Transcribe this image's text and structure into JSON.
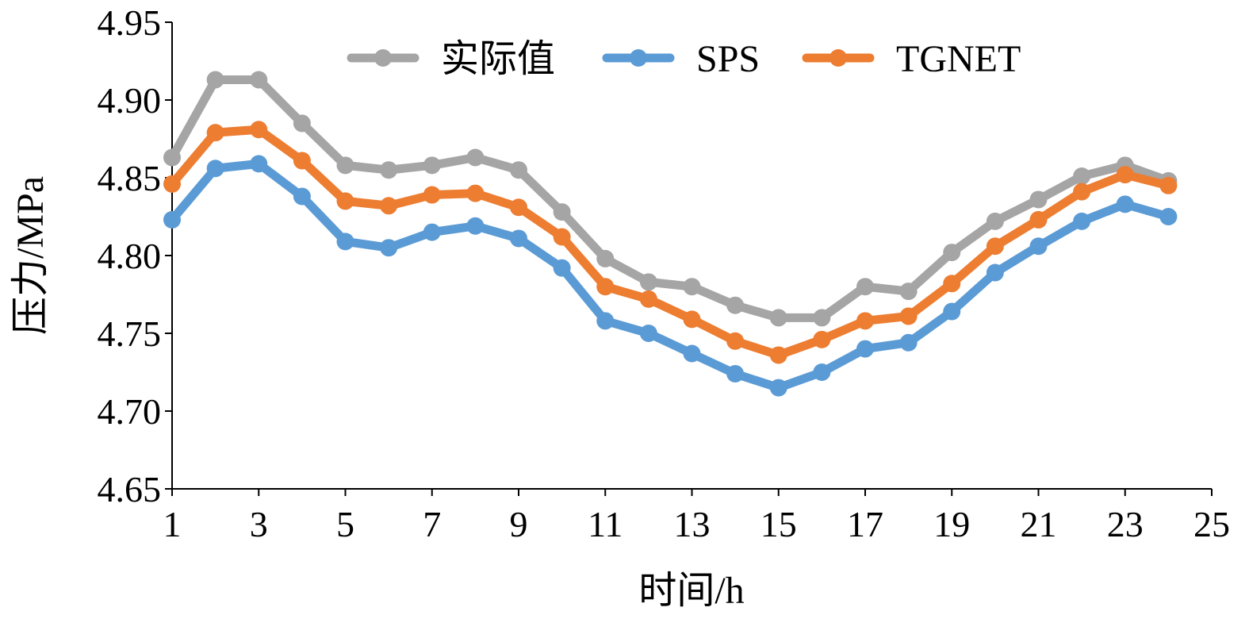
{
  "chart_data": {
    "type": "line",
    "title": "",
    "xlabel": "时间/h",
    "ylabel": "压力/MPa",
    "xlim": [
      1,
      25
    ],
    "ylim": [
      4.65,
      4.95
    ],
    "x_ticks": [
      1,
      3,
      5,
      7,
      9,
      11,
      13,
      15,
      17,
      19,
      21,
      23,
      25
    ],
    "y_ticks": [
      4.65,
      4.7,
      4.75,
      4.8,
      4.85,
      4.9,
      4.95
    ],
    "x_tick_labels": [
      "1",
      "3",
      "5",
      "7",
      "9",
      "11",
      "13",
      "15",
      "17",
      "19",
      "21",
      "23",
      "25"
    ],
    "y_tick_labels": [
      "4.65",
      "4.70",
      "4.75",
      "4.80",
      "4.85",
      "4.90",
      "4.95"
    ],
    "grid": false,
    "legend_position": "top-center",
    "x": [
      1,
      2,
      3,
      4,
      5,
      6,
      7,
      8,
      9,
      10,
      11,
      12,
      13,
      14,
      15,
      16,
      17,
      18,
      19,
      20,
      21,
      22,
      23,
      24
    ],
    "series": [
      {
        "name": "实际值",
        "color": "#a5a5a5",
        "values": [
          4.863,
          4.913,
          4.913,
          4.885,
          4.858,
          4.855,
          4.858,
          4.863,
          4.855,
          4.828,
          4.798,
          4.783,
          4.78,
          4.768,
          4.76,
          4.76,
          4.78,
          4.777,
          4.802,
          4.822,
          4.836,
          4.851,
          4.858,
          4.848
        ]
      },
      {
        "name": "SPS",
        "color": "#5b9bd5",
        "values": [
          4.823,
          4.856,
          4.859,
          4.838,
          4.809,
          4.805,
          4.815,
          4.819,
          4.811,
          4.792,
          4.758,
          4.75,
          4.737,
          4.724,
          4.715,
          4.725,
          4.74,
          4.744,
          4.764,
          4.789,
          4.806,
          4.822,
          4.833,
          4.825
        ]
      },
      {
        "name": "TGNET",
        "color": "#ed7d31",
        "values": [
          4.846,
          4.879,
          4.881,
          4.861,
          4.835,
          4.832,
          4.839,
          4.84,
          4.831,
          4.812,
          4.78,
          4.772,
          4.759,
          4.745,
          4.736,
          4.746,
          4.758,
          4.761,
          4.782,
          4.806,
          4.823,
          4.841,
          4.852,
          4.845
        ]
      }
    ]
  }
}
